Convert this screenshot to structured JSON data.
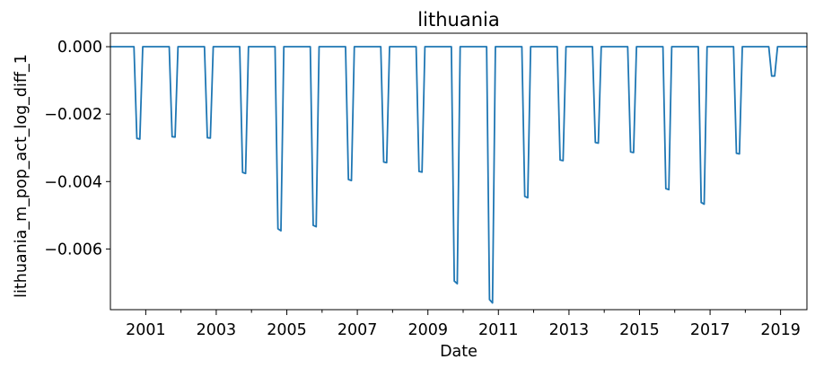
{
  "chart_data": {
    "type": "line",
    "title": "lithuania",
    "xlabel": "Date",
    "ylabel": "lithuania_m_pop_act_log_diff_1",
    "xlim": [
      "2000-01-01",
      "2019-10-01"
    ],
    "ylim": [
      -0.0078,
      0.0004
    ],
    "grid": false,
    "line_color": "#1f77b4",
    "x_major_ticks": [
      "2001-01-01",
      "2003-01-01",
      "2005-01-01",
      "2007-01-01",
      "2009-01-01",
      "2011-01-01",
      "2013-01-01",
      "2015-01-01",
      "2017-01-01",
      "2019-01-01"
    ],
    "x_tick_labels": [
      "2001",
      "2003",
      "2005",
      "2007",
      "2009",
      "2011",
      "2013",
      "2015",
      "2017",
      "2019"
    ],
    "x_minor_ticks": [
      "2002-01-01",
      "2004-01-01",
      "2006-01-01",
      "2008-01-01",
      "2010-01-01",
      "2012-01-01",
      "2014-01-01",
      "2016-01-01",
      "2018-01-01"
    ],
    "y_ticks": [
      0.0,
      -0.002,
      -0.004,
      -0.006
    ],
    "y_tick_labels": [
      "0.000",
      "−0.002",
      "−0.004",
      "−0.006"
    ],
    "series": [
      {
        "x": [
          "2000-01-01",
          "2000-09-01",
          "2000-10-01",
          "2000-11-01",
          "2000-12-01",
          "2001-09-01",
          "2001-10-01",
          "2001-11-01",
          "2001-12-01",
          "2002-09-01",
          "2002-10-01",
          "2002-11-01",
          "2002-12-01",
          "2003-09-01",
          "2003-10-01",
          "2003-11-01",
          "2003-12-01",
          "2004-09-01",
          "2004-10-01",
          "2004-11-01",
          "2004-12-01",
          "2005-09-01",
          "2005-10-01",
          "2005-11-01",
          "2005-12-01",
          "2006-09-01",
          "2006-10-01",
          "2006-11-01",
          "2006-12-01",
          "2007-09-01",
          "2007-10-01",
          "2007-11-01",
          "2007-12-01",
          "2008-09-01",
          "2008-10-01",
          "2008-11-01",
          "2008-12-01",
          "2009-09-01",
          "2009-10-01",
          "2009-11-01",
          "2009-12-01",
          "2010-09-01",
          "2010-10-01",
          "2010-11-01",
          "2010-12-01",
          "2011-09-01",
          "2011-10-01",
          "2011-11-01",
          "2011-12-01",
          "2012-09-01",
          "2012-10-01",
          "2012-11-01",
          "2012-12-01",
          "2013-09-01",
          "2013-10-01",
          "2013-11-01",
          "2013-12-01",
          "2014-09-01",
          "2014-10-01",
          "2014-11-01",
          "2014-12-01",
          "2015-09-01",
          "2015-10-01",
          "2015-11-01",
          "2015-12-01",
          "2016-09-01",
          "2016-10-01",
          "2016-11-01",
          "2016-12-01",
          "2017-09-01",
          "2017-10-01",
          "2017-11-01",
          "2017-12-01",
          "2018-09-01",
          "2018-10-01",
          "2018-11-01",
          "2018-12-01",
          "2019-10-01"
        ],
        "y": [
          0.0,
          0.0,
          -0.00272,
          -0.00274,
          0.0,
          0.0,
          -0.00267,
          -0.00268,
          0.0,
          0.0,
          -0.0027,
          -0.00271,
          0.0,
          0.0,
          -0.00373,
          -0.00376,
          0.0,
          0.0,
          -0.0054,
          -0.00546,
          0.0,
          0.0,
          -0.0053,
          -0.00534,
          0.0,
          0.0,
          -0.00394,
          -0.00397,
          0.0,
          0.0,
          -0.00342,
          -0.00344,
          0.0,
          0.0,
          -0.0037,
          -0.00372,
          0.0,
          0.0,
          -0.00695,
          -0.00703,
          0.0,
          0.0,
          -0.0075,
          -0.0076,
          0.0,
          0.0,
          -0.00444,
          -0.00448,
          0.0,
          0.0,
          -0.00336,
          -0.00338,
          0.0,
          0.0,
          -0.00284,
          -0.00286,
          0.0,
          0.0,
          -0.00312,
          -0.00314,
          0.0,
          0.0,
          -0.00421,
          -0.00424,
          0.0,
          0.0,
          -0.00462,
          -0.00467,
          0.0,
          0.0,
          -0.00316,
          -0.00318,
          0.0,
          0.0,
          -0.00087,
          -0.00087,
          0.0,
          0.0
        ]
      }
    ]
  }
}
